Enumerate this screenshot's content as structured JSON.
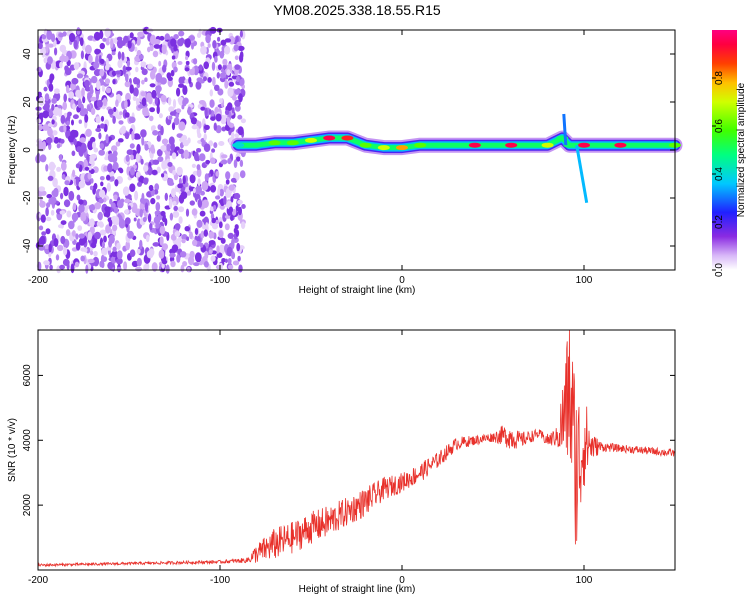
{
  "title": "YM08.2025.338.18.55.R15",
  "chart_data": [
    {
      "type": "heatmap",
      "panel": "spectrogram",
      "xlabel": "Height of straight line (km)",
      "ylabel": "Frequency (Hz)",
      "xlim": [
        -200,
        150
      ],
      "ylim": [
        -50,
        50
      ],
      "xticks": [
        -200,
        -100,
        0,
        100
      ],
      "yticks": [
        -40,
        -20,
        0,
        20,
        40
      ],
      "colorbar": {
        "label": "Normalized spectral amplitude",
        "range": [
          0.0,
          1.0
        ],
        "ticks": [
          0.0,
          0.2,
          0.4,
          0.6,
          0.8
        ],
        "tick_labels": [
          "0.0",
          "0.2",
          "0.4",
          "0.6",
          "0.8"
        ]
      },
      "noise_region": {
        "x_range": [
          -200,
          -87
        ],
        "freq_range": [
          -50,
          50
        ],
        "amplitude": 0.05
      },
      "ridge": {
        "x": [
          -90,
          -80,
          -70,
          -60,
          -50,
          -40,
          -30,
          -20,
          -10,
          0,
          10,
          20,
          40,
          60,
          80,
          88,
          92,
          100,
          120,
          150
        ],
        "freq": [
          2,
          2,
          3,
          3,
          4,
          5,
          5,
          2,
          1,
          1,
          2,
          2,
          2,
          2,
          2,
          5,
          2,
          2,
          2,
          2
        ],
        "amplitude": [
          0.4,
          0.5,
          0.6,
          0.6,
          0.7,
          0.95,
          0.9,
          0.6,
          0.7,
          0.8,
          0.6,
          0.5,
          0.95,
          0.95,
          0.7,
          0.5,
          0.5,
          0.95,
          0.95,
          0.6
        ]
      },
      "spikes": [
        {
          "x": 90,
          "freq": 15,
          "amplitude": 0.3
        },
        {
          "x": 96,
          "freq": -22,
          "amplitude": 0.35
        }
      ]
    },
    {
      "type": "line",
      "panel": "snr",
      "xlabel": "Height of straight line (km)",
      "ylabel": "SNR (10 * v/v)",
      "xlim": [
        -200,
        150
      ],
      "ylim": [
        0,
        7400
      ],
      "xticks": [
        -200,
        -100,
        0,
        100
      ],
      "yticks": [
        2000,
        4000,
        6000
      ],
      "color": "#e8302a",
      "series": [
        {
          "name": "SNR",
          "x": [
            -200,
            -150,
            -100,
            -85,
            -80,
            -70,
            -60,
            -50,
            -40,
            -30,
            -20,
            -10,
            0,
            10,
            20,
            30,
            40,
            50,
            55,
            60,
            65,
            70,
            75,
            80,
            85,
            88,
            92,
            96,
            100,
            105,
            110,
            120,
            130,
            140,
            150
          ],
          "y": [
            150,
            200,
            250,
            300,
            500,
            800,
            1000,
            1300,
            1500,
            1800,
            2100,
            2500,
            2700,
            3000,
            3400,
            3900,
            4000,
            4100,
            4150,
            4100,
            4000,
            4100,
            4200,
            4000,
            4100,
            4500,
            5500,
            3000,
            4000,
            3800,
            3800,
            3750,
            3700,
            3650,
            3600
          ],
          "jitter": [
            40,
            40,
            50,
            80,
            300,
            500,
            500,
            500,
            500,
            450,
            450,
            350,
            300,
            300,
            250,
            200,
            150,
            150,
            300,
            400,
            250,
            200,
            150,
            200,
            300,
            1200,
            2500,
            2800,
            1500,
            400,
            150,
            120,
            120,
            120,
            120
          ]
        }
      ]
    }
  ]
}
